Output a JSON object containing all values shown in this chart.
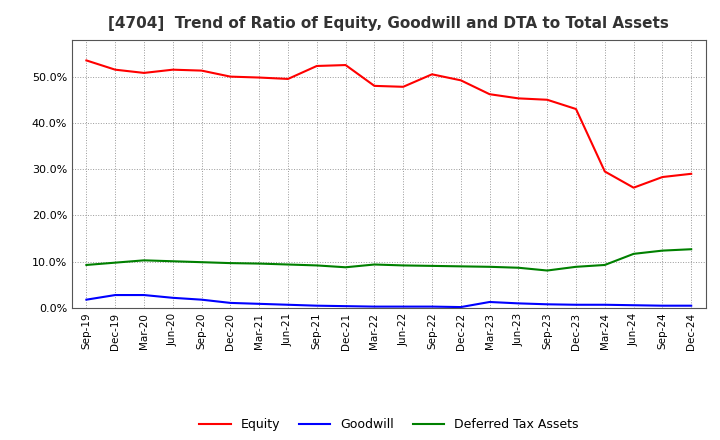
{
  "title": "[4704]  Trend of Ratio of Equity, Goodwill and DTA to Total Assets",
  "x_labels": [
    "Sep-19",
    "Dec-19",
    "Mar-20",
    "Jun-20",
    "Sep-20",
    "Dec-20",
    "Mar-21",
    "Jun-21",
    "Sep-21",
    "Dec-21",
    "Mar-22",
    "Jun-22",
    "Sep-22",
    "Dec-22",
    "Mar-23",
    "Jun-23",
    "Sep-23",
    "Dec-23",
    "Mar-24",
    "Jun-24",
    "Sep-24",
    "Dec-24"
  ],
  "equity": [
    0.535,
    0.515,
    0.508,
    0.515,
    0.513,
    0.5,
    0.498,
    0.495,
    0.523,
    0.525,
    0.48,
    0.478,
    0.505,
    0.492,
    0.462,
    0.453,
    0.45,
    0.43,
    0.295,
    0.26,
    0.283,
    0.29
  ],
  "goodwill": [
    0.018,
    0.028,
    0.028,
    0.022,
    0.018,
    0.011,
    0.009,
    0.007,
    0.005,
    0.004,
    0.003,
    0.003,
    0.003,
    0.002,
    0.013,
    0.01,
    0.008,
    0.007,
    0.007,
    0.006,
    0.005,
    0.005
  ],
  "dta": [
    0.093,
    0.098,
    0.103,
    0.101,
    0.099,
    0.097,
    0.096,
    0.094,
    0.092,
    0.088,
    0.094,
    0.092,
    0.091,
    0.09,
    0.089,
    0.087,
    0.081,
    0.089,
    0.093,
    0.117,
    0.124,
    0.127
  ],
  "equity_color": "#FF0000",
  "goodwill_color": "#0000FF",
  "dta_color": "#008000",
  "background_color": "#FFFFFF",
  "plot_bg_color": "#FFFFFF",
  "grid_color": "#999999",
  "ylim": [
    0.0,
    0.58
  ],
  "yticks": [
    0.0,
    0.1,
    0.2,
    0.3,
    0.4,
    0.5
  ],
  "title_fontsize": 11,
  "legend_labels": [
    "Equity",
    "Goodwill",
    "Deferred Tax Assets"
  ],
  "linewidth": 1.5
}
